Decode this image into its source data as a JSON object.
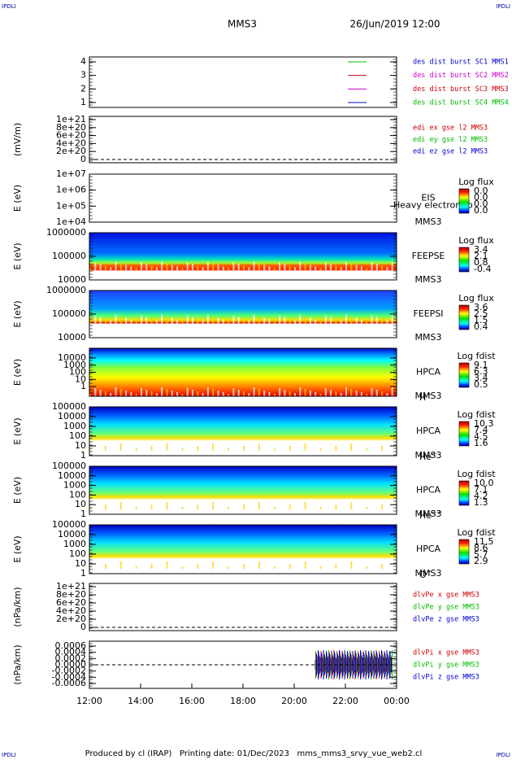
{
  "corner_labels": [
    "IPDLI",
    "IPDLI",
    "IPDLI",
    "IPDLI"
  ],
  "header": {
    "mission": "MMS3",
    "date": "26/Jun/2019 12:00"
  },
  "panels": [
    {
      "yticks": [
        "4",
        "3",
        "2",
        "1"
      ],
      "legend": [
        {
          "text": "des dist burst SC1 MMS1",
          "color": "#0000cc"
        },
        {
          "text": "des dist burst SC2 MMS2",
          "color": "#cc00cc"
        },
        {
          "text": "des dist burst SC3 MMS3",
          "color": "#cc0000"
        },
        {
          "text": "des dist burst SC4 MMS4",
          "color": "#00bb00"
        }
      ]
    },
    {
      "ylabel": "(mV/m)",
      "yticks": [
        "1e+21",
        "8e+20",
        "6e+20",
        "4e+20",
        "2e+20",
        "0"
      ],
      "legend": [
        {
          "text": "edi ex gse l2 MMS3",
          "color": "#cc0000"
        },
        {
          "text": "edi ey gse l2 MMS3",
          "color": "#00bb00"
        },
        {
          "text": "edi ez gse l2 MMS3",
          "color": "#0000cc"
        }
      ]
    },
    {
      "ylabel": "E (eV)",
      "yticks": [
        "1e+07",
        "1e+06",
        "1e+05",
        "1e+04"
      ],
      "instrument": [
        "EIS",
        "MMS3"
      ],
      "overlay": "Heavy electron to",
      "colorbar": {
        "title": "Log flux",
        "ticks": [
          "0.0",
          "0.0",
          "0.0",
          "0.0"
        ]
      }
    },
    {
      "ylabel": "E (eV)",
      "yticks": [
        "1000000",
        "100000",
        "10000"
      ],
      "instrument": [
        "FEEPSE",
        "MMS3"
      ],
      "colorbar": {
        "title": "Log flux",
        "ticks": [
          "3.4",
          "2.1",
          "0.8",
          "-0.4"
        ]
      }
    },
    {
      "ylabel": "E (eV)",
      "yticks": [
        "1000000",
        "100000",
        "10000"
      ],
      "instrument": [
        "FEEPSI",
        "MMS3"
      ],
      "colorbar": {
        "title": "Log flux",
        "ticks": [
          "3.6",
          "2.5",
          "1.5",
          "0.4"
        ]
      }
    },
    {
      "ylabel": "E (eV)",
      "yticks": [
        "10000",
        "1000",
        "100",
        "10",
        "1"
      ],
      "instrument": [
        "HPCA",
        "MMS3"
      ],
      "species": {
        "base": "H",
        "sup": "+"
      },
      "colorbar": {
        "title": "Log fdist",
        "ticks": [
          "9.1",
          "6.3",
          "3.4",
          "0.5"
        ]
      }
    },
    {
      "ylabel": "E (eV)",
      "yticks": [
        "100000",
        "10000",
        "1000",
        "100",
        "10",
        "1"
      ],
      "instrument": [
        "HPCA",
        "MMS3"
      ],
      "species": {
        "base": "He",
        "sup": "+"
      },
      "colorbar": {
        "title": "Log fdist",
        "ticks": [
          "10.3",
          "7.4",
          "4.5",
          "1.6"
        ]
      }
    },
    {
      "ylabel": "E (eV)",
      "yticks": [
        "100000",
        "10000",
        "1000",
        "100",
        "10",
        "1"
      ],
      "instrument": [
        "HPCA",
        "MMS3"
      ],
      "species": {
        "base": "He",
        "sup": "++"
      },
      "colorbar": {
        "title": "Log fdist",
        "ticks": [
          "10.0",
          "7.1",
          "4.2",
          "1.3"
        ]
      }
    },
    {
      "ylabel": "E (eV)",
      "yticks": [
        "100000",
        "10000",
        "1000",
        "100",
        "10",
        "1"
      ],
      "instrument": [
        "HPCA",
        "MMS3"
      ],
      "species": {
        "base": "O",
        "sup": "+"
      },
      "colorbar": {
        "title": "Log fdist",
        "ticks": [
          "11.5",
          "8.6",
          "5.7",
          "2.9"
        ]
      }
    },
    {
      "ylabel": "(nPa/km)",
      "yticks": [
        "1e+21",
        "8e+20",
        "6e+20",
        "4e+20",
        "2e+20",
        "0"
      ],
      "legend": [
        {
          "text": "dlvPe x gse MMS3",
          "color": "#cc0000"
        },
        {
          "text": "dlvPe y gse MMS3",
          "color": "#00bb00"
        },
        {
          "text": "dlvPe z gse MMS3",
          "color": "#0000cc"
        }
      ]
    },
    {
      "ylabel": "(nPa/km)",
      "yticks": [
        "0.0006",
        "0.0004",
        "0.0002",
        "0.0000",
        "-0.0002",
        "-0.0004",
        "-0.0006"
      ],
      "legend": [
        {
          "text": "dlvPi x gse MMS3",
          "color": "#cc0000"
        },
        {
          "text": "dlvPi y gse MMS3",
          "color": "#00bb00"
        },
        {
          "text": "dlvPi z gse MMS3",
          "color": "#0000cc"
        }
      ]
    }
  ],
  "xticks": [
    "12:00",
    "14:00",
    "16:00",
    "18:00",
    "20:00",
    "22:00",
    "00:00"
  ],
  "footer": "Produced by cl (IRAP)   Printing date: 01/Dec/2023   mms_mms3_srvy_vue_web2.cl"
}
